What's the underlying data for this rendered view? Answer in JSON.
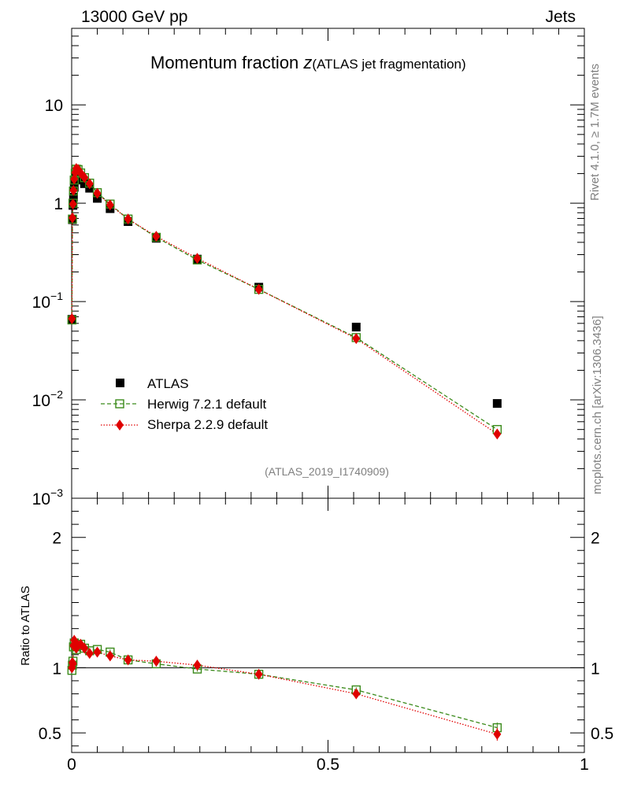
{
  "header": {
    "left_label": "13000 GeV pp",
    "right_label": "Jets"
  },
  "side_labels": {
    "rivet": "Rivet 4.1.0, ≥ 1.7M events",
    "mcplots": "mcplots.cern.ch [arXiv:1306.3436]"
  },
  "analysis_id": "(ATLAS_2019_I1740909)",
  "chart_data": [
    {
      "type": "scatter",
      "title_main": "Momentum fraction ",
      "title_z": "z",
      "title_sub": "(ATLAS jet fragmentation)",
      "xlim": [
        0,
        1
      ],
      "ylim": [
        0.001,
        60
      ],
      "yscale": "log",
      "y_ticks": [
        {
          "value": 10,
          "base": "10",
          "exp": ""
        },
        {
          "value": 1,
          "base": "1",
          "exp": ""
        },
        {
          "value": 0.1,
          "base": "10",
          "exp": "−1"
        },
        {
          "value": 0.01,
          "base": "10",
          "exp": "−2"
        },
        {
          "value": 0.001,
          "base": "10",
          "exp": "−3"
        }
      ],
      "legend_position": "bottom-left",
      "series": [
        {
          "name": "ATLAS",
          "color": "#000000",
          "marker": "square",
          "x": [
            0.0005,
            0.0015,
            0.0025,
            0.0035,
            0.005,
            0.007,
            0.009,
            0.0125,
            0.0175,
            0.025,
            0.035,
            0.05,
            0.075,
            0.11,
            0.165,
            0.245,
            0.365,
            0.555,
            0.83
          ],
          "y": [
            0.066,
            0.68,
            0.95,
            1.15,
            1.45,
            1.75,
            1.95,
            1.88,
            1.72,
            1.58,
            1.42,
            1.12,
            0.88,
            0.65,
            0.44,
            0.27,
            0.14,
            0.055,
            0.0092
          ]
        },
        {
          "name": "Herwig 7.2.1 default",
          "color": "#3a8a1a",
          "marker": "open-square",
          "line": "dashed",
          "x": [
            0.0005,
            0.0015,
            0.0025,
            0.0035,
            0.005,
            0.007,
            0.009,
            0.0125,
            0.0175,
            0.025,
            0.035,
            0.05,
            0.075,
            0.11,
            0.165,
            0.245,
            0.365,
            0.555,
            0.83
          ],
          "y": [
            0.065,
            0.69,
            1.0,
            1.33,
            1.72,
            2.02,
            2.22,
            2.2,
            2.03,
            1.82,
            1.6,
            1.28,
            0.98,
            0.69,
            0.45,
            0.265,
            0.133,
            0.043,
            0.005
          ]
        },
        {
          "name": "Sherpa 2.2.9 default",
          "color": "#e00000",
          "marker": "diamond",
          "line": "dotted",
          "x": [
            0.0005,
            0.0015,
            0.0025,
            0.0035,
            0.005,
            0.007,
            0.009,
            0.0125,
            0.0175,
            0.025,
            0.035,
            0.05,
            0.075,
            0.11,
            0.165,
            0.245,
            0.365,
            0.555,
            0.83
          ],
          "y": [
            0.067,
            0.71,
            0.98,
            1.35,
            1.76,
            2.05,
            2.25,
            2.2,
            2.03,
            1.82,
            1.58,
            1.26,
            0.96,
            0.69,
            0.46,
            0.275,
            0.133,
            0.042,
            0.0045
          ]
        }
      ]
    },
    {
      "type": "scatter",
      "ylabel": "Ratio to ATLAS",
      "xlim": [
        0,
        1
      ],
      "ylim": [
        0.35,
        2.3
      ],
      "x_ticks": [
        {
          "value": 0,
          "label": "0"
        },
        {
          "value": 0.5,
          "label": "0.5"
        },
        {
          "value": 1,
          "label": "1"
        }
      ],
      "y_ticks": [
        {
          "value": 2,
          "label": "2"
        },
        {
          "value": 1,
          "label": "1"
        },
        {
          "value": 0.5,
          "label": "0.5"
        }
      ],
      "reference_line": 1,
      "series": [
        {
          "name": "Herwig 7.2.1 default",
          "color": "#3a8a1a",
          "marker": "open-square",
          "line": "dashed",
          "x": [
            0.0005,
            0.0015,
            0.0025,
            0.0035,
            0.005,
            0.007,
            0.009,
            0.0125,
            0.0175,
            0.025,
            0.035,
            0.05,
            0.075,
            0.11,
            0.165,
            0.245,
            0.365,
            0.555,
            0.83
          ],
          "y": [
            0.98,
            1.02,
            1.05,
            1.16,
            1.19,
            1.16,
            1.14,
            1.17,
            1.18,
            1.15,
            1.13,
            1.14,
            1.12,
            1.06,
            1.03,
            0.99,
            0.95,
            0.83,
            0.54
          ],
          "err": [
            0.02,
            0.02,
            0.02,
            0.02,
            0.02,
            0.02,
            0.02,
            0.02,
            0.02,
            0.02,
            0.02,
            0.02,
            0.02,
            0.02,
            0.02,
            0.02,
            0.02,
            0.02,
            0.04
          ]
        },
        {
          "name": "Sherpa 2.2.9 default",
          "color": "#e00000",
          "marker": "diamond",
          "line": "dotted",
          "x": [
            0.0005,
            0.0015,
            0.0025,
            0.0035,
            0.005,
            0.007,
            0.009,
            0.0125,
            0.0175,
            0.025,
            0.035,
            0.05,
            0.075,
            0.11,
            0.165,
            0.245,
            0.365,
            0.555,
            0.83
          ],
          "y": [
            1.0,
            1.04,
            1.03,
            1.17,
            1.21,
            1.17,
            1.15,
            1.17,
            1.18,
            1.15,
            1.11,
            1.12,
            1.09,
            1.06,
            1.05,
            1.02,
            0.95,
            0.8,
            0.49
          ],
          "err": [
            0.02,
            0.02,
            0.02,
            0.02,
            0.02,
            0.02,
            0.02,
            0.02,
            0.02,
            0.02,
            0.02,
            0.02,
            0.02,
            0.02,
            0.02,
            0.02,
            0.02,
            0.02,
            0.05
          ]
        }
      ]
    }
  ]
}
